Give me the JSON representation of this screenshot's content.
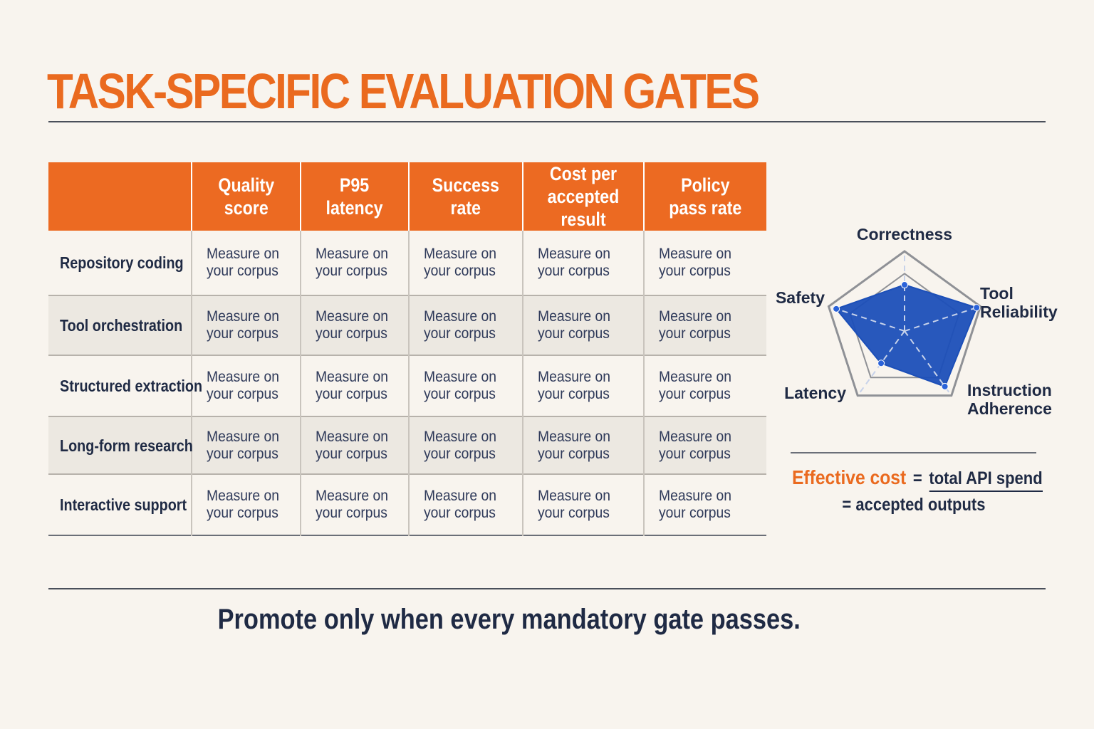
{
  "title": "TASK-SPECIFIC EVALUATION GATES",
  "table": {
    "columns": [
      "Quality\nscore",
      "P95\nlatency",
      "Success\nrate",
      "Cost per\naccepted result",
      "Policy\npass rate"
    ],
    "rows": [
      {
        "label": "Repository coding",
        "cells": [
          "Measure on\nyour corpus",
          "Measure on\nyour corpus",
          "Measure on\nyour corpus",
          "Measure on\nyour corpus",
          "Measure on\nyour corpus"
        ]
      },
      {
        "label": "Tool orchestration",
        "cells": [
          "Measure on\nyour corpus",
          "Measure on\nyour corpus",
          "Measure on\nyour corpus",
          "Measure on\nyour corpus",
          "Measure on\nyour corpus"
        ]
      },
      {
        "label": "Structured extraction",
        "cells": [
          "Measure on\nyour corpus",
          "Measure on\nyour corpus",
          "Measure on\nyour corpus",
          "Measure on\nyour corpus",
          "Measure on\nyour corpus"
        ]
      },
      {
        "label": "Long-form research",
        "cells": [
          "Measure on\nyour corpus",
          "Measure on\nyour corpus",
          "Measure on\nyour corpus",
          "Measure on\nyour corpus",
          "Measure on\nyour corpus"
        ]
      },
      {
        "label": "Interactive support",
        "cells": [
          "Measure on\nyour corpus",
          "Measure on\nyour corpus",
          "Measure on\nyour corpus",
          "Measure on\nyour corpus",
          "Measure on\nyour corpus"
        ]
      }
    ]
  },
  "radar": {
    "axes": [
      {
        "lines": [
          "Correctness"
        ]
      },
      {
        "lines": [
          "Tool",
          "Reliability"
        ]
      },
      {
        "lines": [
          "Instruction",
          "Adherence"
        ]
      },
      {
        "lines": [
          "Latency"
        ]
      },
      {
        "lines": [
          "Safety"
        ]
      }
    ],
    "values": [
      0.58,
      0.95,
      0.86,
      0.5,
      0.9
    ],
    "fill_color": "#1c4fb8",
    "grid_color": "#8f9196"
  },
  "formula": {
    "label": "Effective cost",
    "operator": "=",
    "numerator": "total API spend",
    "denominator": "= accepted outputs"
  },
  "footer": "Promote only when every mandatory gate passes."
}
